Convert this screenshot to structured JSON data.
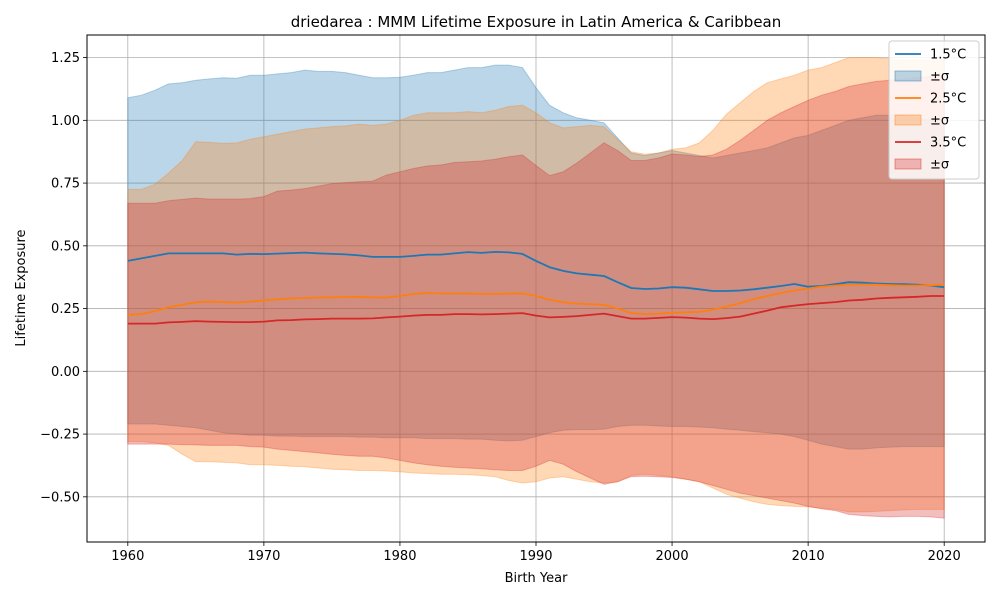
{
  "chart_data": {
    "type": "area",
    "title": "driedarea : MMM Lifetime Exposure in Latin America & Caribbean",
    "xlabel": "Birth Year",
    "ylabel": "Lifetime Exposure",
    "xlim": [
      1957,
      2023
    ],
    "ylim": [
      -0.68,
      1.34
    ],
    "x_ticks": [
      1960,
      1970,
      1980,
      1990,
      2000,
      2010,
      2020
    ],
    "y_ticks": [
      -0.5,
      -0.25,
      0.0,
      0.25,
      0.5,
      0.75,
      1.0,
      1.25
    ],
    "y_tick_labels": [
      "−0.50",
      "−0.25",
      "0.00",
      "0.25",
      "0.50",
      "0.75",
      "1.00",
      "1.25"
    ],
    "grid": true,
    "legend_position": "top-right",
    "x": [
      1960,
      1961,
      1962,
      1963,
      1964,
      1965,
      1966,
      1967,
      1968,
      1969,
      1970,
      1971,
      1972,
      1973,
      1974,
      1975,
      1976,
      1977,
      1978,
      1979,
      1980,
      1981,
      1982,
      1983,
      1984,
      1985,
      1986,
      1987,
      1988,
      1989,
      1990,
      1991,
      1992,
      1993,
      1994,
      1995,
      1996,
      1997,
      1998,
      1999,
      2000,
      2001,
      2002,
      2003,
      2004,
      2005,
      2006,
      2007,
      2008,
      2009,
      2010,
      2011,
      2012,
      2013,
      2014,
      2015,
      2016,
      2017,
      2018,
      2019,
      2020
    ],
    "series": [
      {
        "name": "1.5°C",
        "band_name": "±σ",
        "color": "#1f77b4",
        "mean": [
          0.44,
          0.45,
          0.46,
          0.47,
          0.47,
          0.47,
          0.47,
          0.47,
          0.465,
          0.468,
          0.467,
          0.469,
          0.471,
          0.473,
          0.47,
          0.468,
          0.466,
          0.462,
          0.456,
          0.456,
          0.456,
          0.46,
          0.465,
          0.465,
          0.47,
          0.475,
          0.472,
          0.476,
          0.474,
          0.468,
          0.44,
          0.415,
          0.4,
          0.39,
          0.385,
          0.38,
          0.355,
          0.332,
          0.328,
          0.33,
          0.335,
          0.333,
          0.327,
          0.32,
          0.32,
          0.322,
          0.327,
          0.333,
          0.34,
          0.348,
          0.337,
          0.34,
          0.347,
          0.355,
          0.353,
          0.35,
          0.348,
          0.347,
          0.345,
          0.342,
          0.335
        ],
        "upper": [
          1.09,
          1.1,
          1.12,
          1.145,
          1.15,
          1.16,
          1.165,
          1.17,
          1.168,
          1.18,
          1.18,
          1.185,
          1.19,
          1.2,
          1.195,
          1.195,
          1.19,
          1.18,
          1.17,
          1.17,
          1.172,
          1.18,
          1.19,
          1.19,
          1.2,
          1.21,
          1.21,
          1.22,
          1.22,
          1.21,
          1.13,
          1.06,
          1.03,
          1.01,
          1.0,
          0.99,
          0.93,
          0.87,
          0.86,
          0.87,
          0.88,
          0.87,
          0.86,
          0.85,
          0.86,
          0.87,
          0.88,
          0.89,
          0.91,
          0.93,
          0.94,
          0.96,
          0.98,
          1.0,
          1.01,
          1.02,
          1.02,
          1.02,
          1.01,
          1.0,
          0.99
        ],
        "lower": [
          -0.21,
          -0.21,
          -0.21,
          -0.215,
          -0.22,
          -0.225,
          -0.235,
          -0.245,
          -0.25,
          -0.255,
          -0.255,
          -0.258,
          -0.258,
          -0.26,
          -0.26,
          -0.26,
          -0.26,
          -0.262,
          -0.262,
          -0.265,
          -0.265,
          -0.265,
          -0.268,
          -0.268,
          -0.268,
          -0.27,
          -0.27,
          -0.275,
          -0.277,
          -0.275,
          -0.26,
          -0.245,
          -0.235,
          -0.232,
          -0.232,
          -0.23,
          -0.22,
          -0.215,
          -0.215,
          -0.218,
          -0.22,
          -0.22,
          -0.222,
          -0.225,
          -0.23,
          -0.235,
          -0.24,
          -0.245,
          -0.25,
          -0.26,
          -0.275,
          -0.29,
          -0.3,
          -0.31,
          -0.31,
          -0.305,
          -0.302,
          -0.3,
          -0.3,
          -0.3,
          -0.3
        ]
      },
      {
        "name": "2.5°C",
        "band_name": "±σ",
        "color": "#ff7f0e",
        "mean": [
          0.225,
          0.228,
          0.24,
          0.255,
          0.265,
          0.275,
          0.278,
          0.276,
          0.274,
          0.278,
          0.282,
          0.287,
          0.29,
          0.292,
          0.294,
          0.295,
          0.296,
          0.297,
          0.294,
          0.294,
          0.3,
          0.308,
          0.312,
          0.31,
          0.31,
          0.31,
          0.308,
          0.308,
          0.31,
          0.31,
          0.3,
          0.285,
          0.275,
          0.27,
          0.268,
          0.265,
          0.25,
          0.232,
          0.228,
          0.23,
          0.233,
          0.235,
          0.237,
          0.245,
          0.258,
          0.272,
          0.287,
          0.3,
          0.312,
          0.322,
          0.33,
          0.337,
          0.342,
          0.345,
          0.346,
          0.345,
          0.343,
          0.342,
          0.342,
          0.343,
          0.345
        ],
        "upper": [
          0.725,
          0.725,
          0.745,
          0.79,
          0.84,
          0.915,
          0.912,
          0.908,
          0.91,
          0.925,
          0.935,
          0.945,
          0.955,
          0.965,
          0.97,
          0.975,
          0.978,
          0.985,
          0.98,
          0.985,
          1.0,
          1.02,
          1.03,
          1.03,
          1.03,
          1.035,
          1.03,
          1.04,
          1.055,
          1.06,
          1.03,
          0.99,
          0.97,
          0.975,
          0.98,
          0.975,
          0.925,
          0.875,
          0.865,
          0.87,
          0.885,
          0.89,
          0.91,
          0.96,
          1.025,
          1.07,
          1.115,
          1.15,
          1.165,
          1.18,
          1.2,
          1.21,
          1.23,
          1.25,
          1.25,
          1.25,
          1.245,
          1.24,
          1.24,
          1.24,
          1.24
        ],
        "lower": [
          -0.28,
          -0.28,
          -0.285,
          -0.295,
          -0.33,
          -0.36,
          -0.36,
          -0.362,
          -0.365,
          -0.372,
          -0.372,
          -0.375,
          -0.378,
          -0.38,
          -0.385,
          -0.39,
          -0.392,
          -0.395,
          -0.395,
          -0.397,
          -0.4,
          -0.405,
          -0.407,
          -0.41,
          -0.41,
          -0.412,
          -0.415,
          -0.42,
          -0.435,
          -0.445,
          -0.44,
          -0.425,
          -0.42,
          -0.43,
          -0.44,
          -0.445,
          -0.44,
          -0.415,
          -0.41,
          -0.415,
          -0.42,
          -0.43,
          -0.44,
          -0.465,
          -0.49,
          -0.505,
          -0.52,
          -0.53,
          -0.535,
          -0.538,
          -0.54,
          -0.545,
          -0.55,
          -0.56,
          -0.56,
          -0.558,
          -0.555,
          -0.552,
          -0.55,
          -0.55,
          -0.55
        ]
      },
      {
        "name": "3.5°C",
        "band_name": "±σ",
        "color": "#d62728",
        "mean": [
          0.19,
          0.19,
          0.19,
          0.195,
          0.197,
          0.2,
          0.198,
          0.197,
          0.196,
          0.196,
          0.198,
          0.203,
          0.204,
          0.207,
          0.208,
          0.21,
          0.21,
          0.21,
          0.211,
          0.215,
          0.218,
          0.222,
          0.225,
          0.225,
          0.228,
          0.228,
          0.227,
          0.228,
          0.23,
          0.232,
          0.222,
          0.215,
          0.217,
          0.22,
          0.225,
          0.23,
          0.22,
          0.21,
          0.21,
          0.213,
          0.216,
          0.214,
          0.21,
          0.208,
          0.212,
          0.218,
          0.23,
          0.242,
          0.255,
          0.262,
          0.268,
          0.272,
          0.276,
          0.282,
          0.285,
          0.29,
          0.293,
          0.295,
          0.297,
          0.3,
          0.3
        ],
        "upper": [
          0.67,
          0.67,
          0.67,
          0.68,
          0.685,
          0.69,
          0.686,
          0.686,
          0.686,
          0.688,
          0.696,
          0.718,
          0.722,
          0.728,
          0.738,
          0.748,
          0.752,
          0.755,
          0.758,
          0.782,
          0.795,
          0.808,
          0.818,
          0.822,
          0.832,
          0.835,
          0.838,
          0.845,
          0.855,
          0.862,
          0.82,
          0.78,
          0.795,
          0.83,
          0.87,
          0.91,
          0.88,
          0.84,
          0.84,
          0.85,
          0.866,
          0.862,
          0.856,
          0.862,
          0.885,
          0.92,
          0.96,
          1.0,
          1.03,
          1.055,
          1.08,
          1.1,
          1.115,
          1.135,
          1.145,
          1.155,
          1.16,
          1.165,
          1.17,
          1.175,
          1.175
        ],
        "lower": [
          -0.29,
          -0.29,
          -0.29,
          -0.29,
          -0.292,
          -0.293,
          -0.295,
          -0.295,
          -0.295,
          -0.3,
          -0.302,
          -0.31,
          -0.315,
          -0.32,
          -0.325,
          -0.33,
          -0.335,
          -0.338,
          -0.338,
          -0.345,
          -0.355,
          -0.365,
          -0.372,
          -0.378,
          -0.382,
          -0.385,
          -0.388,
          -0.392,
          -0.395,
          -0.395,
          -0.378,
          -0.355,
          -0.37,
          -0.4,
          -0.425,
          -0.45,
          -0.44,
          -0.42,
          -0.418,
          -0.42,
          -0.423,
          -0.43,
          -0.44,
          -0.455,
          -0.47,
          -0.485,
          -0.495,
          -0.505,
          -0.515,
          -0.525,
          -0.538,
          -0.548,
          -0.555,
          -0.57,
          -0.575,
          -0.578,
          -0.58,
          -0.578,
          -0.578,
          -0.58,
          -0.585
        ]
      }
    ]
  }
}
